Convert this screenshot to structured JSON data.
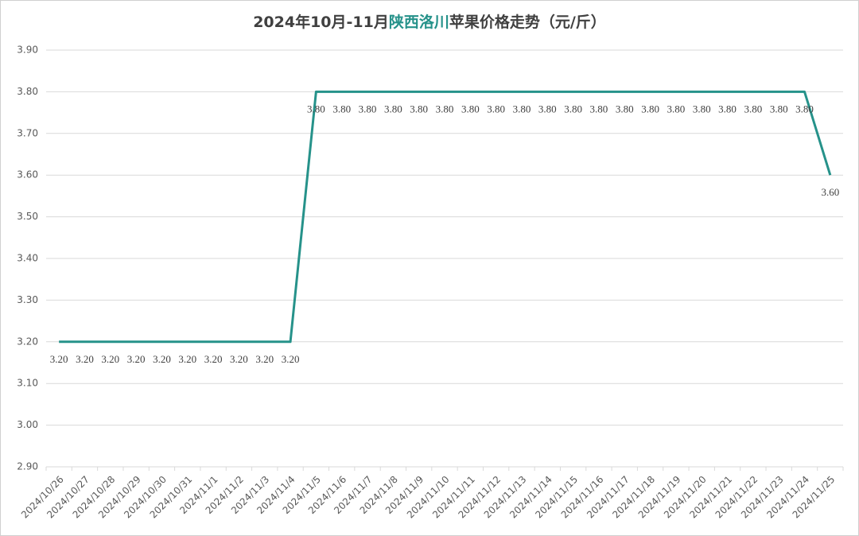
{
  "chart_data": {
    "type": "line",
    "title": [
      {
        "text": "2024年10月-11月",
        "color": "#404040"
      },
      {
        "text": "陕西洛川",
        "color": "#26928a"
      },
      {
        "text": "苹果价格走势（元/斤）",
        "color": "#404040"
      }
    ],
    "categories": [
      "2024/10/26",
      "2024/10/27",
      "2024/10/28",
      "2024/10/29",
      "2024/10/30",
      "2024/10/31",
      "2024/11/1",
      "2024/11/2",
      "2024/11/3",
      "2024/11/4",
      "2024/11/5",
      "2024/11/6",
      "2024/11/7",
      "2024/11/8",
      "2024/11/9",
      "2024/11/10",
      "2024/11/11",
      "2024/11/12",
      "2024/11/13",
      "2024/11/14",
      "2024/11/15",
      "2024/11/16",
      "2024/11/17",
      "2024/11/18",
      "2024/11/19",
      "2024/11/20",
      "2024/11/21",
      "2024/11/22",
      "2024/11/23",
      "2024/11/24",
      "2024/11/25"
    ],
    "values": [
      3.2,
      3.2,
      3.2,
      3.2,
      3.2,
      3.2,
      3.2,
      3.2,
      3.2,
      3.2,
      3.8,
      3.8,
      3.8,
      3.8,
      3.8,
      3.8,
      3.8,
      3.8,
      3.8,
      3.8,
      3.8,
      3.8,
      3.8,
      3.8,
      3.8,
      3.8,
      3.8,
      3.8,
      3.8,
      3.8,
      3.6
    ],
    "value_labels": [
      "3.20",
      "3.20",
      "3.20",
      "3.20",
      "3.20",
      "3.20",
      "3.20",
      "3.20",
      "3.20",
      "3.20",
      "3.80",
      "3.80",
      "3.80",
      "3.80",
      "3.80",
      "3.80",
      "3.80",
      "3.80",
      "3.80",
      "3.80",
      "3.80",
      "3.80",
      "3.80",
      "3.80",
      "3.80",
      "3.80",
      "3.80",
      "3.80",
      "3.80",
      "3.80",
      "3.60"
    ],
    "color": "#26928a",
    "ylim": [
      2.9,
      3.9
    ],
    "yticks": [
      {
        "value": 2.9,
        "label": "2.90"
      },
      {
        "value": 3.0,
        "label": "3.00"
      },
      {
        "value": 3.1,
        "label": "3.10"
      },
      {
        "value": 3.2,
        "label": "3.20"
      },
      {
        "value": 3.3,
        "label": "3.30"
      },
      {
        "value": 3.4,
        "label": "3.40"
      },
      {
        "value": 3.5,
        "label": "3.50"
      },
      {
        "value": 3.6,
        "label": "3.60"
      },
      {
        "value": 3.7,
        "label": "3.70"
      },
      {
        "value": 3.8,
        "label": "3.80"
      },
      {
        "value": 3.9,
        "label": "3.90"
      }
    ],
    "grid": true
  }
}
